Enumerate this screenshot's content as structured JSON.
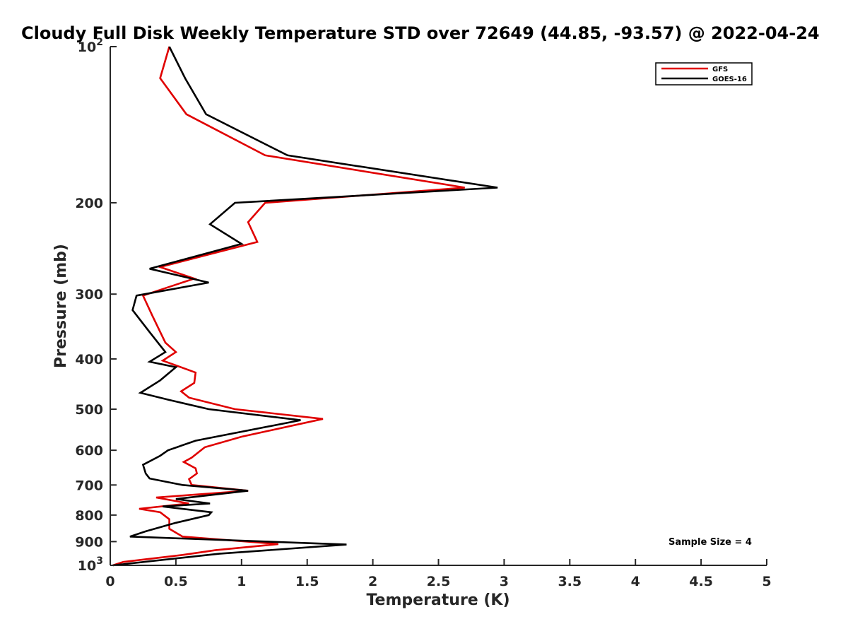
{
  "chart_data": {
    "type": "line",
    "title": "Cloudy Full Disk Weekly Temperature STD over 72649 (44.85, -93.57) @ 2022-04-24",
    "xlabel": "Temperature (K)",
    "ylabel": "Pressure (mb)",
    "xlim": [
      0,
      5
    ],
    "ylim": [
      100,
      1000
    ],
    "y_scale": "log",
    "y_reversed": true,
    "x_ticks": [
      "0",
      "0.5",
      "1",
      "1.5",
      "2",
      "2.5",
      "3",
      "3.5",
      "4",
      "4.5",
      "5"
    ],
    "y_ticks": [
      {
        "value": 100,
        "base": "10",
        "exp": "2"
      },
      {
        "value": 200,
        "label": "200"
      },
      {
        "value": 300,
        "label": "300"
      },
      {
        "value": 400,
        "label": "400"
      },
      {
        "value": 500,
        "label": "500"
      },
      {
        "value": 600,
        "label": "600"
      },
      {
        "value": 700,
        "label": "700"
      },
      {
        "value": 800,
        "label": "800"
      },
      {
        "value": 900,
        "label": "900"
      },
      {
        "value": 1000,
        "base": "10",
        "exp": "3"
      }
    ],
    "grid": false,
    "legend_position": "top-right",
    "annotation": "Sample Size = 4",
    "series": [
      {
        "name": "GFS",
        "color": "#e00000",
        "points": [
          [
            0.45,
            100
          ],
          [
            0.38,
            115
          ],
          [
            0.58,
            135
          ],
          [
            1.18,
            162
          ],
          [
            2.7,
            187
          ],
          [
            1.18,
            200
          ],
          [
            1.05,
            218
          ],
          [
            1.12,
            238
          ],
          [
            0.38,
            266
          ],
          [
            0.64,
            280
          ],
          [
            0.25,
            302
          ],
          [
            0.32,
            330
          ],
          [
            0.42,
            372
          ],
          [
            0.5,
            388
          ],
          [
            0.4,
            403
          ],
          [
            0.65,
            425
          ],
          [
            0.64,
            445
          ],
          [
            0.54,
            462
          ],
          [
            0.6,
            475
          ],
          [
            0.95,
            500
          ],
          [
            1.62,
            522
          ],
          [
            1.0,
            565
          ],
          [
            0.72,
            592
          ],
          [
            0.62,
            620
          ],
          [
            0.56,
            632
          ],
          [
            0.65,
            650
          ],
          [
            0.66,
            665
          ],
          [
            0.6,
            682
          ],
          [
            0.62,
            700
          ],
          [
            1.05,
            718
          ],
          [
            0.35,
            740
          ],
          [
            0.6,
            760
          ],
          [
            0.22,
            778
          ],
          [
            0.38,
            790
          ],
          [
            0.45,
            815
          ],
          [
            0.45,
            850
          ],
          [
            0.55,
            880
          ],
          [
            1.28,
            910
          ],
          [
            0.8,
            935
          ],
          [
            0.55,
            955
          ],
          [
            0.1,
            985
          ],
          [
            0.02,
            1000
          ]
        ]
      },
      {
        "name": "GOES-16",
        "color": "#000000",
        "points": [
          [
            0.45,
            100
          ],
          [
            0.57,
            115
          ],
          [
            0.73,
            135
          ],
          [
            1.35,
            162
          ],
          [
            2.95,
            187
          ],
          [
            0.95,
            200
          ],
          [
            0.76,
            220
          ],
          [
            1.0,
            240
          ],
          [
            0.3,
            268
          ],
          [
            0.75,
            285
          ],
          [
            0.2,
            302
          ],
          [
            0.17,
            322
          ],
          [
            0.3,
            355
          ],
          [
            0.42,
            388
          ],
          [
            0.3,
            405
          ],
          [
            0.5,
            415
          ],
          [
            0.38,
            440
          ],
          [
            0.23,
            465
          ],
          [
            0.45,
            480
          ],
          [
            0.75,
            500
          ],
          [
            1.45,
            525
          ],
          [
            0.65,
            575
          ],
          [
            0.44,
            600
          ],
          [
            0.38,
            615
          ],
          [
            0.25,
            640
          ],
          [
            0.27,
            665
          ],
          [
            0.3,
            680
          ],
          [
            0.55,
            700
          ],
          [
            1.05,
            718
          ],
          [
            0.5,
            745
          ],
          [
            0.76,
            760
          ],
          [
            0.4,
            770
          ],
          [
            0.77,
            790
          ],
          [
            0.75,
            800
          ],
          [
            0.5,
            828
          ],
          [
            0.27,
            860
          ],
          [
            0.15,
            880
          ],
          [
            1.8,
            912
          ],
          [
            0.83,
            950
          ],
          [
            0.02,
            1000
          ]
        ]
      }
    ]
  }
}
